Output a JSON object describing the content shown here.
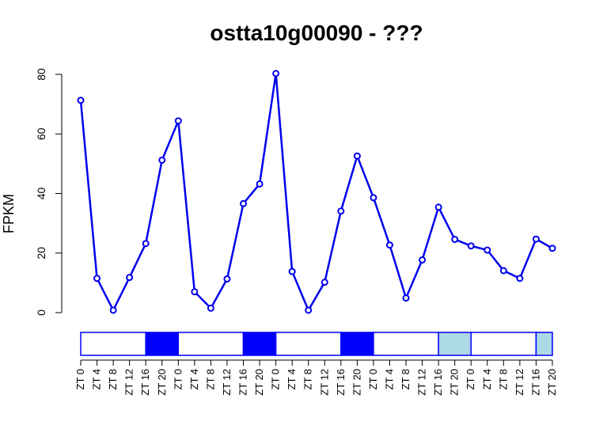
{
  "chart_data": {
    "type": "line",
    "title": "ostta10g00090 - ???",
    "ylabel": "FPKM",
    "xlabel": "",
    "ylim": [
      0,
      80
    ],
    "yticks": [
      0,
      20,
      40,
      60,
      80
    ],
    "grid": false,
    "legend": "none",
    "categories": [
      "ZT 0",
      "ZT 4",
      "ZT 8",
      "ZT 12",
      "ZT 16",
      "ZT 20",
      "ZT 0",
      "ZT 4",
      "ZT 8",
      "ZT 12",
      "ZT 16",
      "ZT 20",
      "ZT 0",
      "ZT 4",
      "ZT 8",
      "ZT 12",
      "ZT 16",
      "ZT 20",
      "ZT 0",
      "ZT 4",
      "ZT 8",
      "ZT 12",
      "ZT 16",
      "ZT 20",
      "ZT 0",
      "ZT 4",
      "ZT 8",
      "ZT 12",
      "ZT 16",
      "ZT 20"
    ],
    "series": [
      {
        "values": [
          71.3,
          11.5,
          0.8,
          11.8,
          23.2,
          51.2,
          64.4,
          7.0,
          1.5,
          11.3,
          36.6,
          43.2,
          80.3,
          13.8,
          0.8,
          10.2,
          34.1,
          52.6,
          38.6,
          22.7,
          4.9,
          17.7,
          35.4,
          24.6,
          22.4,
          21.0,
          14.1,
          11.5,
          24.7,
          21.6
        ],
        "color": "#0000ee"
      }
    ],
    "light_bar": [
      {
        "from": 0,
        "to": 4,
        "color": "#ffffff"
      },
      {
        "from": 4,
        "to": 6,
        "color": "#0000ff"
      },
      {
        "from": 6,
        "to": 10,
        "color": "#ffffff"
      },
      {
        "from": 10,
        "to": 12,
        "color": "#0000ff"
      },
      {
        "from": 12,
        "to": 16,
        "color": "#ffffff"
      },
      {
        "from": 16,
        "to": 18,
        "color": "#0000ff"
      },
      {
        "from": 18,
        "to": 22,
        "color": "#ffffff"
      },
      {
        "from": 22,
        "to": 24,
        "color": "#add8e6"
      },
      {
        "from": 24,
        "to": 28,
        "color": "#ffffff"
      },
      {
        "from": 28,
        "to": 29,
        "color": "#add8e6"
      }
    ]
  }
}
